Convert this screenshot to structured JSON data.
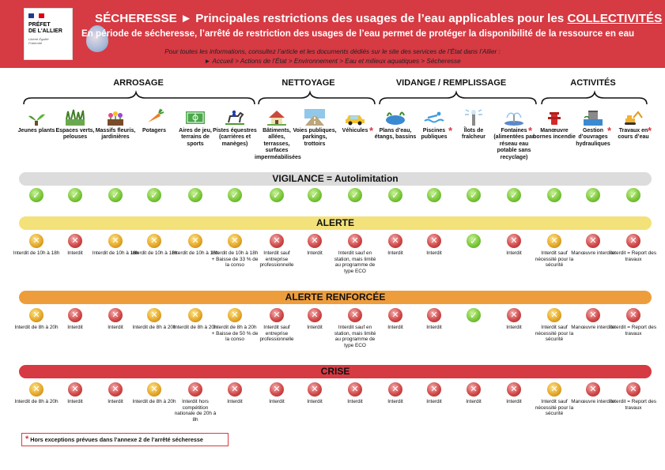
{
  "header": {
    "logo_line1": "PRÉFET",
    "logo_line2": "DE L'ALLIER",
    "logo_motto": "Liberté Égalité Fraternité",
    "title_prefix": "SÉCHERESSE ► Principales restrictions des usages de l’eau applicables pour les ",
    "title_emphasis": "COLLECTIVITÉS",
    "subtitle": "En période de sécheresse, l’arrêté de restriction des usages de l’eau permet de protéger la disponibilité de la ressource en eau",
    "info_line1": "Pour toutes les informations, consultez l’article et les documents dédiés sur le site des services de l’État dans l’Allier :",
    "info_line2": "► Accueil > Actions de l’État > Environnement > Eau et milieux aquatiques > Sécheresse"
  },
  "categories": [
    "ARROSAGE",
    "NETTOYAGE",
    "VIDANGE / REMPLISSAGE",
    "ACTIVITÉS"
  ],
  "usages": [
    {
      "label": "Jeunes plants",
      "icon": "seedling-icon",
      "star": false
    },
    {
      "label": "Espaces verts, pelouses",
      "icon": "grass-icon",
      "star": false
    },
    {
      "label": "Massifs fleuris, jardinières",
      "icon": "flowers-icon",
      "star": false
    },
    {
      "label": "Potagers",
      "icon": "carrot-icon",
      "star": false
    },
    {
      "label": "Aires de jeu, terrains de sports",
      "icon": "sports-field-icon",
      "star": false
    },
    {
      "label": "Pistes équestres (carrières et manèges)",
      "icon": "horse-rider-icon",
      "star": false
    },
    {
      "label": "Bâtiments, allées, terrasses, surfaces imperméabilisées",
      "icon": "house-icon",
      "star": false
    },
    {
      "label": "Voies publiques, parkings, trottoirs",
      "icon": "road-icon",
      "star": false
    },
    {
      "label": "Véhicules",
      "icon": "car-icon",
      "star": true
    },
    {
      "label": "Plans d’eau, étangs, bassins",
      "icon": "pond-icon",
      "star": false
    },
    {
      "label": "Piscines publiques",
      "icon": "swimmer-icon",
      "star": true
    },
    {
      "label": "Îlots de fraîcheur",
      "icon": "misting-icon",
      "star": false
    },
    {
      "label": "Fontaines (alimentées par réseau eau potable sans recyclage)",
      "icon": "fountain-icon",
      "star": true
    },
    {
      "label": "Manœuvre bornes incendie",
      "icon": "hydrant-icon",
      "star": false
    },
    {
      "label": "Gestion d’ouvrages hydrauliques",
      "icon": "hydraulic-icon",
      "star": true
    },
    {
      "label": "Travaux en cours d’eau",
      "icon": "excavator-icon",
      "star": true
    }
  ],
  "levels": [
    {
      "id": "vigilance",
      "name": "VIGILANCE  =  Autolimitation",
      "color": "#dcdcdc",
      "cells": [
        {
          "s": "ok",
          "t": ""
        },
        {
          "s": "ok",
          "t": ""
        },
        {
          "s": "ok",
          "t": ""
        },
        {
          "s": "ok",
          "t": ""
        },
        {
          "s": "ok",
          "t": ""
        },
        {
          "s": "ok",
          "t": ""
        },
        {
          "s": "ok",
          "t": ""
        },
        {
          "s": "ok",
          "t": ""
        },
        {
          "s": "ok",
          "t": ""
        },
        {
          "s": "ok",
          "t": ""
        },
        {
          "s": "ok",
          "t": ""
        },
        {
          "s": "ok",
          "t": ""
        },
        {
          "s": "ok",
          "t": ""
        },
        {
          "s": "ok",
          "t": ""
        },
        {
          "s": "ok",
          "t": ""
        },
        {
          "s": "ok",
          "t": ""
        }
      ]
    },
    {
      "id": "alerte",
      "name": "ALERTE",
      "color": "#f3e27a",
      "cells": [
        {
          "s": "w",
          "t": "Interdit de 10h à 18h"
        },
        {
          "s": "x",
          "t": "Interdit"
        },
        {
          "s": "w",
          "t": "Interdit de 10h à 18h"
        },
        {
          "s": "w",
          "t": "Interdit de 10h à 18h"
        },
        {
          "s": "w",
          "t": "Interdit de 10h à 18h"
        },
        {
          "s": "w",
          "t": "Interdit de 10h à 18h + Baisse de 33 % de la conso"
        },
        {
          "s": "x",
          "t": "Interdit sauf entreprise professionnelle"
        },
        {
          "s": "x",
          "t": "Interdit"
        },
        {
          "s": "x",
          "t": "Interdit sauf en station, mais limité au programme de type ECO"
        },
        {
          "s": "x",
          "t": "Interdit"
        },
        {
          "s": "x",
          "t": "Interdit"
        },
        {
          "s": "ok",
          "t": ""
        },
        {
          "s": "x",
          "t": "Interdit"
        },
        {
          "s": "w",
          "t": "Interdit sauf nécessité pour la sécurité"
        },
        {
          "s": "x",
          "t": "Manœuvre interdite"
        },
        {
          "s": "x",
          "t": "Interdit = Report des travaux"
        }
      ]
    },
    {
      "id": "alerte-renforcee",
      "name": "ALERTE RENFORCÉE",
      "color": "#ee9d3c",
      "cells": [
        {
          "s": "w",
          "t": "Interdit de 8h à 20h"
        },
        {
          "s": "x",
          "t": "Interdit"
        },
        {
          "s": "x",
          "t": "Interdit"
        },
        {
          "s": "w",
          "t": "Interdit de 8h à 20h"
        },
        {
          "s": "w",
          "t": "Interdit de 8h à 20h"
        },
        {
          "s": "w",
          "t": "Interdit de 8h à 20h + Baisse de 50 % de la conso"
        },
        {
          "s": "x",
          "t": "Interdit sauf entreprise professionnelle"
        },
        {
          "s": "x",
          "t": "Interdit"
        },
        {
          "s": "x",
          "t": "Interdit sauf en station, mais limité au programme de type ECO"
        },
        {
          "s": "x",
          "t": "Interdit"
        },
        {
          "s": "x",
          "t": "Interdit"
        },
        {
          "s": "ok",
          "t": ""
        },
        {
          "s": "x",
          "t": "Interdit"
        },
        {
          "s": "w",
          "t": "Interdit sauf nécessité pour la sécurité"
        },
        {
          "s": "x",
          "t": "Manœuvre interdite"
        },
        {
          "s": "x",
          "t": "Interdit = Report des travaux"
        }
      ]
    },
    {
      "id": "crise",
      "name": "CRISE",
      "color": "#d63a43",
      "cells": [
        {
          "s": "w",
          "t": "Interdit de 8h à 20h"
        },
        {
          "s": "x",
          "t": "Interdit"
        },
        {
          "s": "x",
          "t": "Interdit"
        },
        {
          "s": "w",
          "t": "Interdit de 8h à 20h"
        },
        {
          "s": "x",
          "t": "Interdit hors compétition nationale de 20h à 8h"
        },
        {
          "s": "x",
          "t": "Interdit"
        },
        {
          "s": "x",
          "t": "Interdit"
        },
        {
          "s": "x",
          "t": "Interdit"
        },
        {
          "s": "x",
          "t": "Interdit"
        },
        {
          "s": "x",
          "t": "Interdit"
        },
        {
          "s": "x",
          "t": "Interdit"
        },
        {
          "s": "x",
          "t": "Interdit"
        },
        {
          "s": "x",
          "t": "Interdit"
        },
        {
          "s": "w",
          "t": "Interdit sauf nécessité pour la sécurité"
        },
        {
          "s": "x",
          "t": "Manœuvre interdite"
        },
        {
          "s": "x",
          "t": "Interdit = Report des travaux"
        }
      ]
    }
  ],
  "footnote": "Hors exceptions prévues dans l’annexe 2 de l’arrêté sécheresse",
  "star_symbol": "*"
}
